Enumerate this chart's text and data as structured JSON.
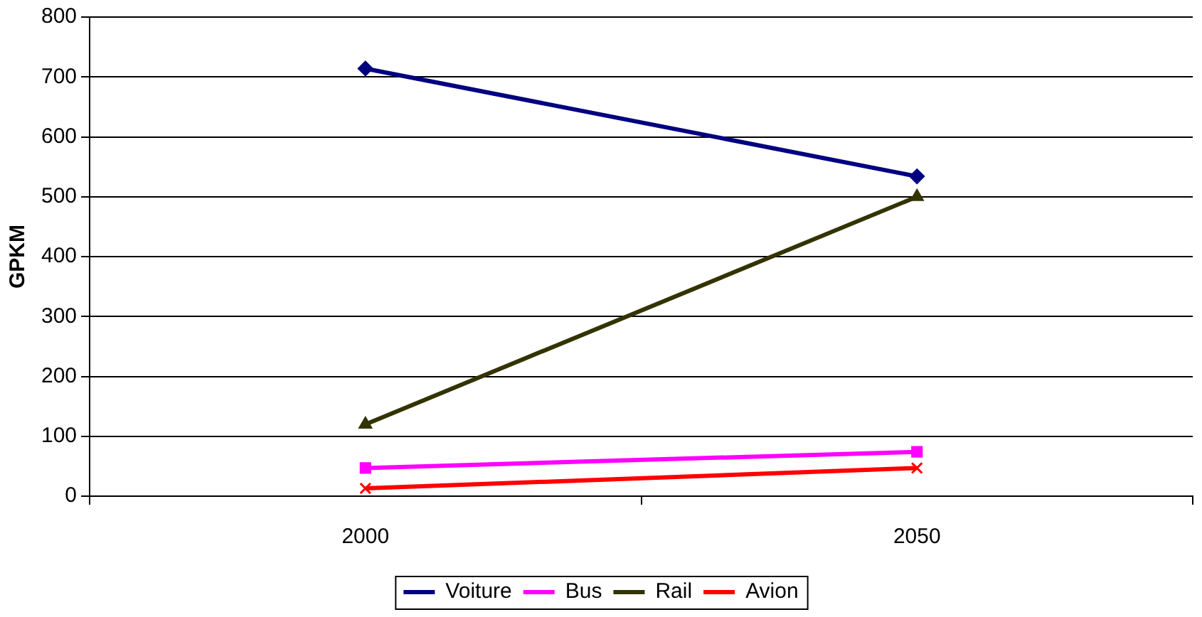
{
  "chart_data": {
    "type": "line",
    "ylabel": "GPKM",
    "categories": [
      "2000",
      "2050"
    ],
    "series": [
      {
        "name": "Voiture",
        "color": "#000080",
        "values": [
          714,
          534
        ],
        "marker": "diamond"
      },
      {
        "name": "Bus",
        "color": "#ff00ff",
        "values": [
          47,
          74
        ],
        "marker": "square"
      },
      {
        "name": "Rail",
        "color": "#333300",
        "values": [
          120,
          500
        ],
        "marker": "triangle"
      },
      {
        "name": "Avion",
        "color": "#ff0000",
        "values": [
          13,
          47
        ],
        "marker": "cross"
      }
    ],
    "ylim": [
      0,
      800
    ],
    "yticks": [
      0,
      100,
      200,
      300,
      400,
      500,
      600,
      700,
      800
    ],
    "grid": "y",
    "legend": "bottom",
    "line_style": "solid"
  }
}
